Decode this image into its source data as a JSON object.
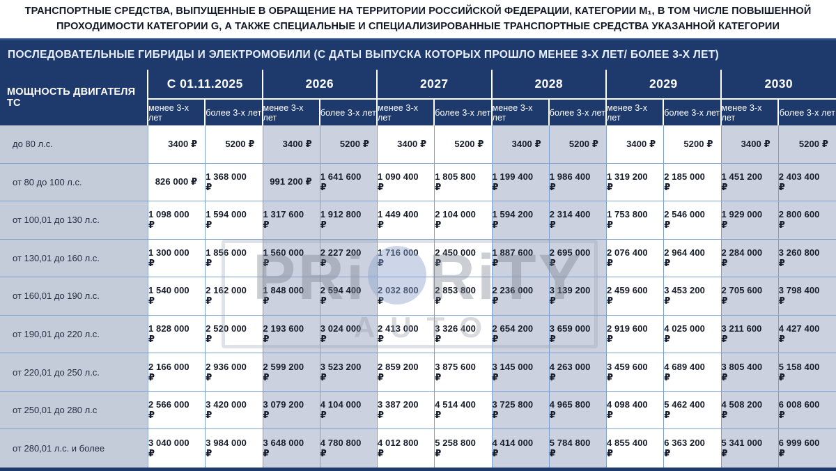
{
  "title": {
    "text": "ТРАНСПОРТНЫЕ СРЕДСТВА, ВЫПУЩЕННЫЕ В ОБРАЩЕНИЕ НА ТЕРРИТОРИИ РОССИЙСКОЙ ФЕДЕРАЦИИ, КАТЕГОРИИ М₁, В ТОМ ЧИСЛЕ ПОВЫШЕННОЙ ПРОХОДИМОСТИ КАТЕГОРИИ G, А ТАКЖЕ СПЕЦИАЛЬНЫЕ И СПЕЦИАЛИЗИРОВАННЫЕ ТРАНСПОРТНЫЕ СРЕДСТВА УКАЗАННОЙ КАТЕГОРИИ"
  },
  "banner": {
    "text": "ПОСЛЕДОВАТЕЛЬНЫЕ ГИБРИДЫ И ЭЛЕКТРОМОБИЛИ (С ДАТЫ ВЫПУСКА КОТОРЫХ ПРОШЛО МЕНЕЕ 3-Х ЛЕТ/ БОЛЕЕ 3-Х ЛЕТ)"
  },
  "watermark": {
    "part1": "PRi",
    "part2": "RiTY",
    "line2": "AUTO",
    "globe_icon": "globe-icon"
  },
  "colors": {
    "navy": "#1e3a6c",
    "banner_edge": "#2c4e8f",
    "cell_border": "#7fa0cf",
    "label_bg": "#c4cbd9",
    "alt_cell_bg": "#cbd1de",
    "title_text": "#121826",
    "header_text": "#ffffff"
  },
  "table": {
    "corner_header": "МОЩНОСТЬ ДВИГАТЕЛЯ ТС",
    "sub_less": "менее 3-х лет",
    "sub_more": "более 3-х лет",
    "years": [
      "С 01.11.2025",
      "2026",
      "2027",
      "2028",
      "2029",
      "2030"
    ],
    "rows": [
      {
        "label": "до 80 л.с.",
        "values": [
          "3400 ₽",
          "5200 ₽",
          "3400 ₽",
          "5200 ₽",
          "3400 ₽",
          "5200 ₽",
          "3400 ₽",
          "5200 ₽",
          "3400 ₽",
          "5200 ₽",
          "3400 ₽",
          "5200 ₽"
        ]
      },
      {
        "label": "от 80 до 100 л.с.",
        "values": [
          "826 000 ₽",
          "1 368 000 ₽",
          "991 200 ₽",
          "1 641 600 ₽",
          "1 090 400 ₽",
          "1 805 800 ₽",
          "1 199 400 ₽",
          "1 986 400 ₽",
          "1 319 200 ₽",
          "2 185 000 ₽",
          "1 451 200 ₽",
          "2 403 400 ₽"
        ]
      },
      {
        "label": "от 100,01 до 130 л.с.",
        "values": [
          "1 098 000 ₽",
          "1 594 000 ₽",
          "1 317 600 ₽",
          "1 912 800 ₽",
          "1 449 400 ₽",
          "2 104 000 ₽",
          "1 594 200 ₽",
          "2 314 400 ₽",
          "1 753 800 ₽",
          "2 546 000 ₽",
          "1 929 000 ₽",
          "2 800 600 ₽"
        ]
      },
      {
        "label": "от 130,01 до 160 л.с.",
        "values": [
          "1 300 000 ₽",
          "1 856 000 ₽",
          "1 560 000 ₽",
          "2 227 200 ₽",
          "1 716 000 ₽",
          "2 450 000 ₽",
          "1 887 600 ₽",
          "2 695 000 ₽",
          "2 076 400 ₽",
          "2 964 400 ₽",
          "2 284 000 ₽",
          "3 260 800 ₽"
        ]
      },
      {
        "label": "от 160,01 до 190 л.с.",
        "values": [
          "1 540 000 ₽",
          "2 162 000 ₽",
          "1 848 000 ₽",
          "2 594 400 ₽",
          "2 032 800 ₽",
          "2 853 800 ₽",
          "2 236 000 ₽",
          "3 139 200 ₽",
          "2 459 600 ₽",
          "3 453 200 ₽",
          "2 705 600 ₽",
          "3 798 400 ₽"
        ]
      },
      {
        "label": "от 190,01 до 220 л.с.",
        "values": [
          "1 828 000 ₽",
          "2 520 000 ₽",
          "2 193 600 ₽",
          "3 024 000 ₽",
          "2 413 000 ₽",
          "3 326 400 ₽",
          "2 654 200 ₽",
          "3 659 000 ₽",
          "2 919 600 ₽",
          "4 025 000 ₽",
          "3 211 600 ₽",
          "4 427 400 ₽"
        ]
      },
      {
        "label": "от 220,01 до 250 л.с.",
        "values": [
          "2 166 000 ₽",
          "2 936 000 ₽",
          "2 599 200 ₽",
          "3 523 200 ₽",
          "2 859 200 ₽",
          "3 875 600 ₽",
          "3 145 000 ₽",
          "4 263 000 ₽",
          "3 459 600 ₽",
          "4 689 400 ₽",
          "3 805 400 ₽",
          "5 158 400 ₽"
        ]
      },
      {
        "label": "от 250,01 до 280 л.с",
        "values": [
          "2 566 000 ₽",
          "3 420 000 ₽",
          "3 079 200 ₽",
          "4 104 000 ₽",
          "3 387 200 ₽",
          "4 514 400 ₽",
          "3 725 800 ₽",
          "4 965 800 ₽",
          "4 098 400 ₽",
          "5 462 400 ₽",
          "4 508 200 ₽",
          "6 008 600 ₽"
        ]
      },
      {
        "label": "от 280,01 л.с. и более",
        "values": [
          "3 040 000 ₽",
          "3 984 000 ₽",
          "3 648 000 ₽",
          "4 780 800 ₽",
          "4 012 800 ₽",
          "5 258 800 ₽",
          "4 414 000 ₽",
          "5 784 800 ₽",
          "4 855 400 ₽",
          "6 363 200 ₽",
          "5 341 000 ₽",
          "6 999 600 ₽"
        ]
      }
    ]
  }
}
